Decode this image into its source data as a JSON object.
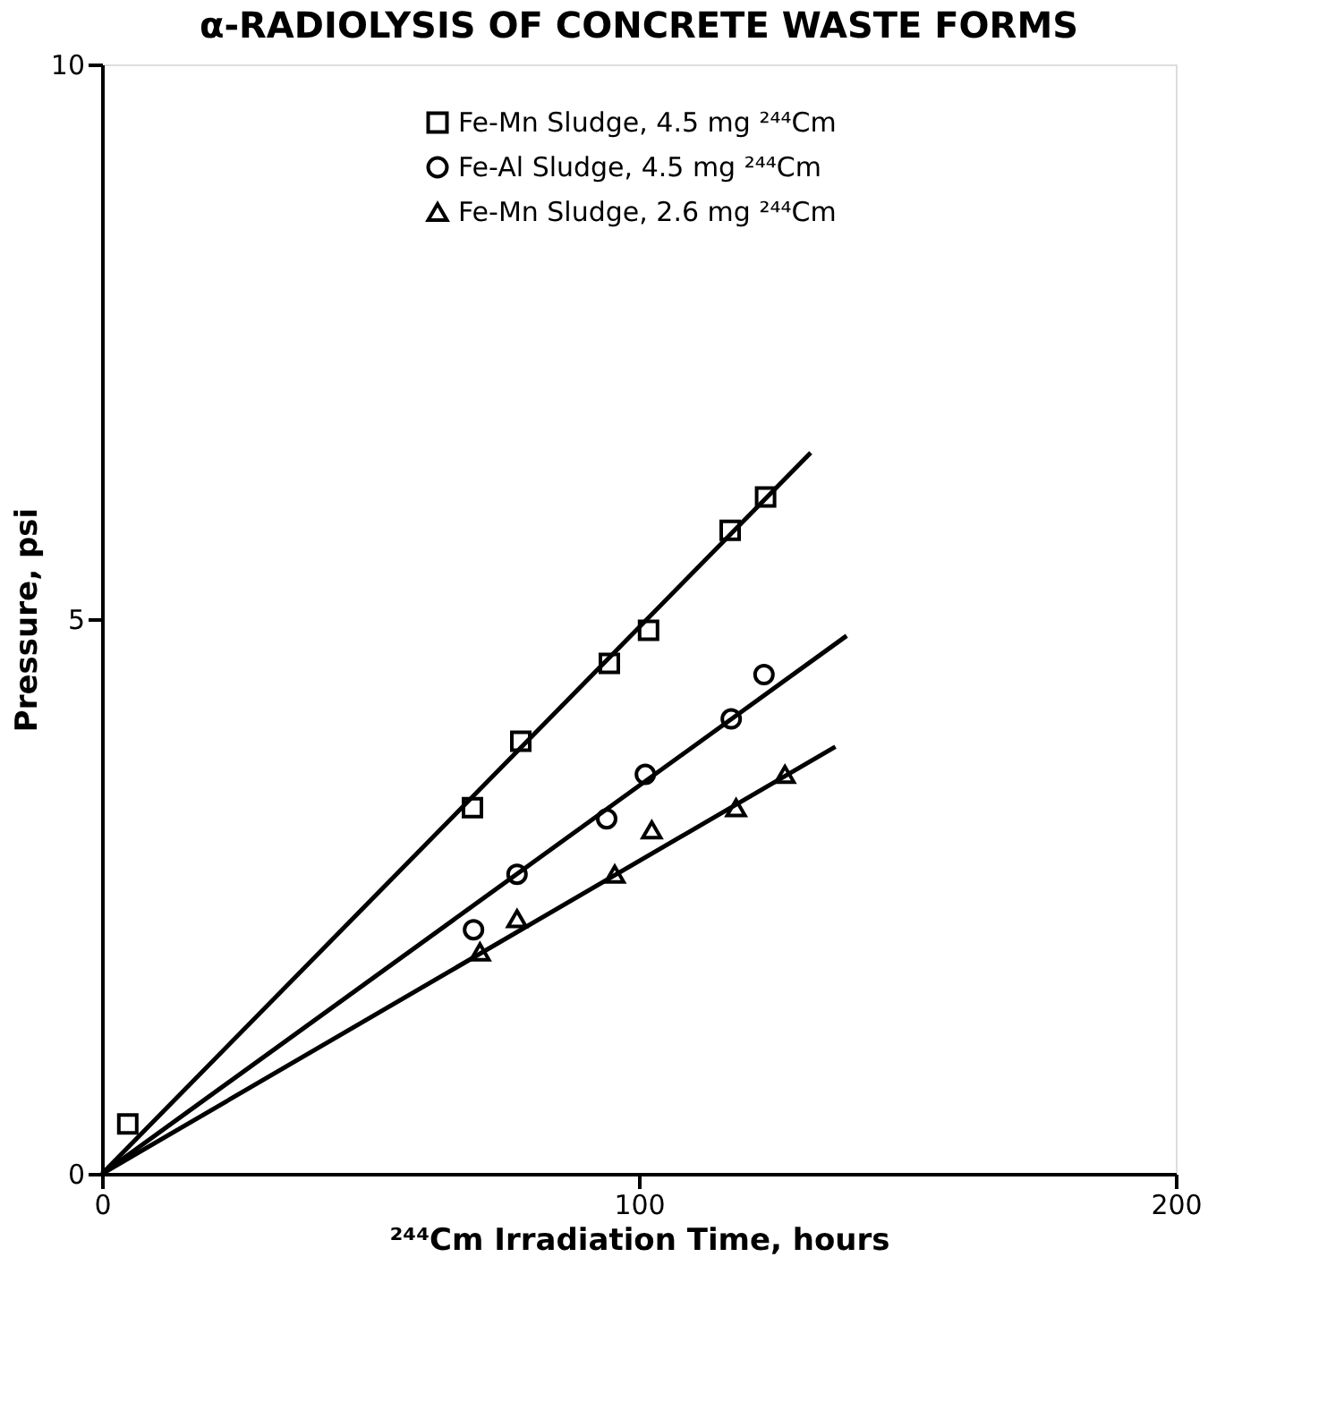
{
  "chart_data": {
    "type": "scatter",
    "title": "α-RADIOLYSIS OF CONCRETE WASTE FORMS",
    "xlabel": "²⁴⁴Cm Irradiation Time, hours",
    "ylabel": "Pressure, psi",
    "xlim": [
      0,
      200
    ],
    "ylim": [
      0,
      10
    ],
    "xticks": [
      0,
      100,
      200
    ],
    "yticks": [
      0,
      5,
      10
    ],
    "line_style": "solid",
    "grid": false,
    "legend": "top",
    "series": [
      {
        "name": "Fe-Mn Sludge, 4.5 mg ²⁴⁴Cm",
        "marker": "square",
        "color": "#000000",
        "x": [
          4.8,
          69,
          78,
          94.5,
          101.8,
          117,
          123.6
        ],
        "values": [
          0.45,
          3.3,
          3.9,
          4.6,
          4.9,
          5.8,
          6.1
        ]
      },
      {
        "name": "Fe-Al Sludge, 4.5 mg ²⁴⁴Cm",
        "marker": "circle",
        "color": "#000000",
        "x": [
          69.2,
          77.3,
          94,
          101.2,
          117.2,
          123.3
        ],
        "values": [
          2.2,
          2.7,
          3.2,
          3.6,
          4.1,
          4.5
        ]
      },
      {
        "name": "Fe-Mn Sludge, 2.6 mg ²⁴⁴Cm",
        "marker": "triangle",
        "color": "#000000",
        "x": [
          70.4,
          77.3,
          95.5,
          102.4,
          118.1,
          127.2
        ],
        "values": [
          2.0,
          2.3,
          2.7,
          3.1,
          3.3,
          3.6
        ]
      },
      {
        "type": "line",
        "color": "#000000",
        "x": [
          0,
          132
        ],
        "values": [
          0,
          6.5
        ]
      },
      {
        "type": "line",
        "color": "#000000",
        "x": [
          0,
          138.7
        ],
        "values": [
          0,
          4.85
        ]
      },
      {
        "type": "line",
        "color": "#000000",
        "x": [
          0,
          136.6
        ],
        "values": [
          0,
          3.85
        ]
      }
    ]
  }
}
